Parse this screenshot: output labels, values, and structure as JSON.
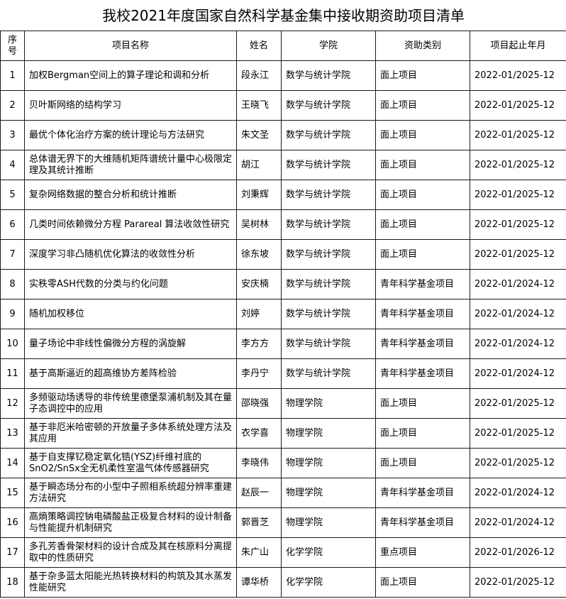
{
  "table": {
    "title": "我校2021年度国家自然科学基金集中接收期资助项目清单",
    "header": [
      "序号",
      "项目名称",
      "姓名",
      "学院",
      "资助类别",
      "项目起止年月"
    ],
    "rows": [
      [
        "1",
        "加权Bergman空间上的算子理论和调和分析",
        "段永江",
        "数学与统计学院",
        "面上项目",
        "2022-01/2025-12"
      ],
      [
        "2",
        "贝叶斯网络的结构学习",
        "王晓飞",
        "数学与统计学院",
        "面上项目",
        "2022-01/2025-12"
      ],
      [
        "3",
        "最优个体化治疗方案的统计理论与方法研究",
        "朱文圣",
        "数学与统计学院",
        "面上项目",
        "2022-01/2025-12"
      ],
      [
        "4",
        "总体谱无界下的大维随机矩阵谱统计量中心极限定理及其统计推断",
        "胡江",
        "数学与统计学院",
        "面上项目",
        "2022-01/2025-12"
      ],
      [
        "5",
        "复杂网络数据的整合分析和统计推断",
        "刘秉辉",
        "数学与统计学院",
        "面上项目",
        "2022-01/2025-12"
      ],
      [
        "6",
        "几类时间依赖微分方程 Parareal 算法收敛性研究",
        "吴树林",
        "数学与统计学院",
        "面上项目",
        "2022-01/2025-12"
      ],
      [
        "7",
        "深度学习非凸随机优化算法的收敛性分析",
        "徐东坡",
        "数学与统计学院",
        "面上项目",
        "2022-01/2025-12"
      ],
      [
        "8",
        "实秩零ASH代数的分类与约化问题",
        "安庆楠",
        "数学与统计学院",
        "青年科学基金项目",
        "2022-01/2024-12"
      ],
      [
        "9",
        "随机加权移位",
        "刘婷",
        "数学与统计学院",
        "青年科学基金项目",
        "2022-01/2024-12"
      ],
      [
        "10",
        "量子场论中非线性偏微分方程的涡旋解",
        "李方方",
        "数学与统计学院",
        "青年科学基金项目",
        "2022-01/2024-12"
      ],
      [
        "11",
        "基于高斯逼近的超高维协方差阵检验",
        "李丹宁",
        "数学与统计学院",
        "青年科学基金项目",
        "2022-01/2024-12"
      ],
      [
        "12",
        "多频驱动场诱导的非传统里德堡泵浦机制及其在量子态调控中的应用",
        "邵晓强",
        "物理学院",
        "面上项目",
        "2022-01/2025-12"
      ],
      [
        "13",
        "基于非厄米哈密顿的开放量子多体系统处理方法及其应用",
        "衣学喜",
        "物理学院",
        "面上项目",
        "2022-01/2025-12"
      ],
      [
        "14",
        "基于自支撑钇稳定氧化锆(YSZ)纤维衬底的SnO2/SnSx全无机柔性室温气体传感器研究",
        "李晓伟",
        "物理学院",
        "面上项目",
        "2022-01/2025-12"
      ],
      [
        "15",
        "基于瞬态场分布的小型中子照相系统超分辨率重建方法研究",
        "赵辰一",
        "物理学院",
        "青年科学基金项目",
        "2022-01/2024-12"
      ],
      [
        "16",
        "高熵策略调控钠电磷酸盐正极复合材料的设计制备与性能提升机制研究",
        "郭晋芝",
        "物理学院",
        "青年科学基金项目",
        "2022-01/2024-12"
      ],
      [
        "17",
        "多孔芳香骨架材料的设计合成及其在核原料分离提取中的性质研究",
        "朱广山",
        "化学学院",
        "重点项目",
        "2022-01/2026-12"
      ],
      [
        "18",
        "基于杂多蓝太阳能光热转换材料的构筑及其水蒸发性能研究",
        "谭华桥",
        "化学学院",
        "面上项目",
        "2022-01/2025-12"
      ]
    ]
  }
}
